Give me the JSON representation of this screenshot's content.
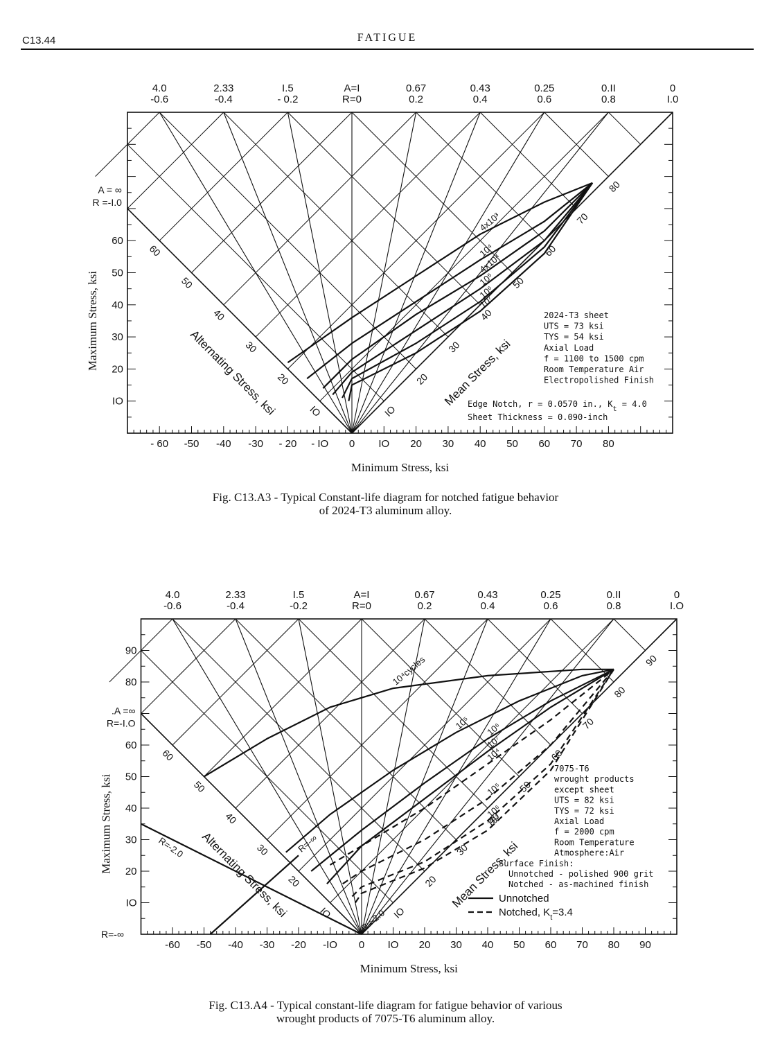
{
  "header": {
    "page_number": "C13.44",
    "running_title": "FATIGUE"
  },
  "figures": [
    {
      "caption": [
        "Fig. C13.A3 - Typical Constant-life diagram for notched fatigue behavior",
        "of 2024-T3 aluminum alloy."
      ]
    },
    {
      "caption": [
        "Fig. C13.A4 - Typical constant-life diagram for fatigue behavior of various",
        "wrought products of 7075-T6 aluminum alloy."
      ]
    }
  ],
  "chart_data": [
    {
      "type": "line",
      "xlabel": "Minimum Stress, ksi",
      "ylabel": "Maximum Stress, ksi",
      "xlim": [
        -70,
        100
      ],
      "ylim": [
        0,
        100
      ],
      "x_ticks": [
        -60,
        -50,
        -40,
        -30,
        -20,
        -10,
        0,
        10,
        20,
        30,
        40,
        50,
        60,
        70,
        80
      ],
      "x_tick_labels": [
        "- 60",
        "-50",
        "-40",
        "-30",
        "- 20",
        "- IO",
        "0",
        "IO",
        "20",
        "30",
        "40",
        "50",
        "60",
        "70",
        "80"
      ],
      "y_ticks": [
        10,
        20,
        30,
        40,
        50,
        60
      ],
      "y_tick_labels": [
        "IO",
        "20",
        "30",
        "40",
        "50",
        "60"
      ],
      "ratio_rays": [
        {
          "A": "4.0",
          "R": "-0.6"
        },
        {
          "A": "2.33",
          "R": "-0.4"
        },
        {
          "A": "I.5",
          "R": "- 0.2"
        },
        {
          "A": "A=I",
          "R": "R=0"
        },
        {
          "A": "0.67",
          "R": "0.2"
        },
        {
          "A": "0.43",
          "R": "0.4"
        },
        {
          "A": "0.25",
          "R": "0.6"
        },
        {
          "A": "0.II",
          "R": "0.8"
        },
        {
          "A": "0",
          "R": "I.0"
        }
      ],
      "left_edge_label": [
        "A = ∞",
        "R =-I.0"
      ],
      "alternating_axis": {
        "label": "Alternating Stress, ksi",
        "ticks": [
          "IO",
          "20",
          "30",
          "40",
          "50",
          "60"
        ]
      },
      "mean_axis": {
        "label": "Mean Stress, ksi",
        "ticks": [
          "IO",
          "20",
          "30",
          "40",
          "50",
          "60",
          "70",
          "80"
        ]
      },
      "series": [
        {
          "name": "4x10³",
          "points": [
            [
              -20,
              22
            ],
            [
              0,
              36
            ],
            [
              20,
              49
            ],
            [
              40,
              62
            ],
            [
              60,
              72
            ],
            [
              75,
              78
            ]
          ]
        },
        {
          "name": "10⁴",
          "points": [
            [
              -14,
              17
            ],
            [
              0,
              28
            ],
            [
              20,
              41
            ],
            [
              40,
              54
            ],
            [
              60,
              66
            ],
            [
              75,
              78
            ]
          ]
        },
        {
          "name": "4x10⁴",
          "points": [
            [
              -9,
              14
            ],
            [
              0,
              23
            ],
            [
              20,
              37
            ],
            [
              40,
              49
            ],
            [
              60,
              63
            ],
            [
              75,
              78
            ]
          ]
        },
        {
          "name": "10⁵",
          "points": [
            [
              -6,
              12
            ],
            [
              0,
              19
            ],
            [
              20,
              32
            ],
            [
              40,
              45
            ],
            [
              60,
              60
            ],
            [
              75,
              78
            ]
          ]
        },
        {
          "name": "10⁶",
          "points": [
            [
              -3,
              11
            ],
            [
              0,
              17
            ],
            [
              20,
              28
            ],
            [
              40,
              41
            ],
            [
              60,
              58
            ],
            [
              75,
              78
            ]
          ]
        },
        {
          "name": "10⁷",
          "points": [
            [
              -1,
              10
            ],
            [
              0,
              15
            ],
            [
              20,
              25
            ],
            [
              40,
              38
            ],
            [
              60,
              56
            ],
            [
              75,
              78
            ]
          ]
        }
      ],
      "annotations": {
        "material_box": [
          "2024-T3 sheet",
          "UTS = 73 ksi",
          "TYS = 54 ksi",
          "Axial Load",
          "f = 1100 to 1500 cpm",
          "Room Temperature Air",
          "Electropolished Finish"
        ],
        "notch_note": [
          "Edge Notch, r = 0.0570 in., K",
          "t",
          " = 4.0"
        ],
        "thickness_note": "Sheet Thickness = 0.090-inch"
      }
    },
    {
      "type": "line",
      "xlabel": "Minimum Stress, ksi",
      "ylabel": "Maximum Stress, ksi",
      "xlim": [
        -70,
        100
      ],
      "ylim": [
        0,
        100
      ],
      "x_ticks": [
        -60,
        -50,
        -40,
        -30,
        -20,
        -10,
        0,
        10,
        20,
        30,
        40,
        50,
        60,
        70,
        80,
        90
      ],
      "x_tick_labels": [
        "-60",
        "-50",
        "-40",
        "-30",
        "-20",
        "-IO",
        "0",
        "IO",
        "20",
        "30",
        "40",
        "50",
        "60",
        "70",
        "80",
        "90"
      ],
      "y_ticks": [
        10,
        20,
        30,
        40,
        50,
        60,
        80,
        90
      ],
      "y_tick_labels": [
        "IO",
        "20",
        "30",
        "40",
        "50",
        "60",
        "80",
        "90"
      ],
      "ratio_rays": [
        {
          "A": "4.0",
          "R": "-0.6"
        },
        {
          "A": "2.33",
          "R": "-0.4"
        },
        {
          "A": "I.5",
          "R": "-0.2"
        },
        {
          "A": "A=I",
          "R": "R=0"
        },
        {
          "A": "0.67",
          "R": "0.2"
        },
        {
          "A": "0.43",
          "R": "0.4"
        },
        {
          "A": "0.25",
          "R": "0.6"
        },
        {
          "A": "0.II",
          "R": "0.8"
        },
        {
          "A": "0",
          "R": "I.O"
        }
      ],
      "left_edge_label": [
        ".A =∞",
        "R=-I.O"
      ],
      "left_extra_labels": [
        "R=-2.0",
        "R=-∞"
      ],
      "alternating_axis": {
        "label": "Alternating Stress, ksi",
        "ticks": [
          "IO",
          "20",
          "30",
          "40",
          "50",
          "60"
        ]
      },
      "mean_axis": {
        "label": "Mean Stress, ksi",
        "ticks": [
          "IO",
          "20",
          "30",
          "40",
          "50",
          "60",
          "70",
          "80",
          "90"
        ]
      },
      "series": [
        {
          "name": "10⁴cycles",
          "style": "unnotched",
          "points": [
            [
              -50,
              50
            ],
            [
              -30,
              62
            ],
            [
              -10,
              72
            ],
            [
              10,
              78
            ],
            [
              40,
              82
            ],
            [
              70,
              84
            ],
            [
              80,
              84
            ]
          ]
        },
        {
          "name": "10⁵",
          "style": "unnotched",
          "points": [
            [
              -24,
              26
            ],
            [
              -10,
              38
            ],
            [
              10,
              52
            ],
            [
              30,
              64
            ],
            [
              50,
              74
            ],
            [
              70,
              82
            ],
            [
              80,
              84
            ]
          ]
        },
        {
          "name": "10⁶",
          "style": "unnotched",
          "points": [
            [
              -16,
              20
            ],
            [
              0,
              33
            ],
            [
              20,
              48
            ],
            [
              40,
              62
            ],
            [
              60,
              74
            ],
            [
              80,
              84
            ]
          ]
        },
        {
          "name": "10⁷",
          "style": "unnotched",
          "points": [
            [
              -11,
              16
            ],
            [
              0,
              28
            ],
            [
              20,
              43
            ],
            [
              40,
              58
            ],
            [
              60,
              72
            ],
            [
              80,
              84
            ]
          ]
        },
        {
          "name": "10⁴",
          "style": "notched",
          "points": [
            [
              -10,
              22
            ],
            [
              0,
              28
            ],
            [
              20,
              40
            ],
            [
              40,
              54
            ],
            [
              60,
              68
            ],
            [
              80,
              84
            ]
          ]
        },
        {
          "name": "10⁵",
          "style": "notched",
          "points": [
            [
              -6,
              16
            ],
            [
              0,
              20
            ],
            [
              20,
              30
            ],
            [
              40,
              43
            ],
            [
              60,
              60
            ],
            [
              80,
              84
            ]
          ]
        },
        {
          "name": "10⁶",
          "style": "notched",
          "points": [
            [
              -3,
              12
            ],
            [
              0,
              15
            ],
            [
              20,
              23
            ],
            [
              40,
              36
            ],
            [
              60,
              54
            ],
            [
              80,
              84
            ]
          ]
        },
        {
          "name": "10⁷",
          "style": "notched",
          "points": [
            [
              -2,
              10
            ],
            [
              0,
              13
            ],
            [
              20,
              21
            ],
            [
              40,
              33
            ],
            [
              60,
              52
            ],
            [
              80,
              84
            ]
          ]
        },
        {
          "name": "R=-2.0",
          "style": "unnotched",
          "points": [
            [
              -70,
              35
            ],
            [
              0,
              0
            ]
          ]
        },
        {
          "name": "R=-∞",
          "style": "unnotched",
          "points": [
            [
              -48,
              0
            ],
            [
              -20,
              25
            ]
          ]
        }
      ],
      "annotations": {
        "material_box": [
          "7075-T6",
          "wrought products",
          "except sheet",
          "UTS = 82 ksi",
          "TYS = 72 ksi",
          "Axial Load",
          "f = 2000 cpm",
          "Room Temperature",
          "Atmosphere:Air",
          "Surface Finish:",
          "Unnotched - polished 900 grit",
          "Notched - as-machined finish"
        ],
        "legend": {
          "unnotched": "Unnotched",
          "notched": "Notched, K",
          "notched_sub": "t",
          "notched_val": "=3.4"
        },
        "curve_labels": [
          "10⁴cycles",
          "10⁵",
          "10⁶",
          "10⁷",
          "10⁴",
          "10⁵",
          "10",
          "6",
          "8",
          "7"
        ]
      }
    }
  ]
}
